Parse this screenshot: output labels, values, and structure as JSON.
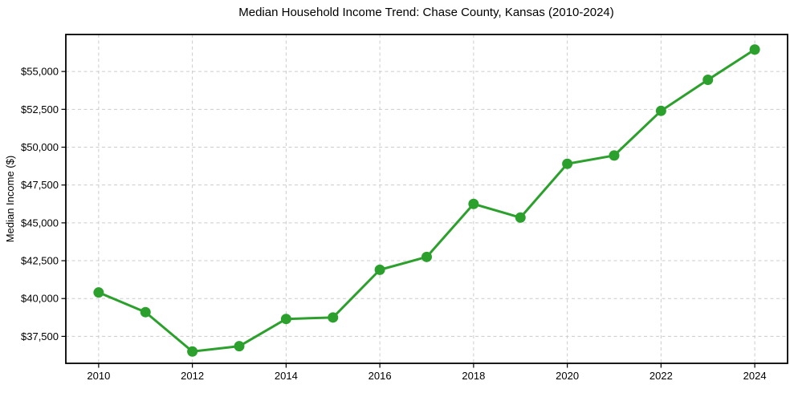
{
  "chart_data": {
    "type": "line",
    "title": "Median Household Income Trend: Chase County, Kansas (2010-2024)",
    "xlabel": "",
    "ylabel": "Median Income ($)",
    "x": [
      2010,
      2011,
      2012,
      2013,
      2014,
      2015,
      2016,
      2017,
      2018,
      2019,
      2020,
      2021,
      2022,
      2023,
      2024
    ],
    "series": [
      {
        "name": "Median Household Income",
        "values": [
          40400,
          39100,
          36500,
          36850,
          38650,
          38750,
          41900,
          42750,
          46250,
          45350,
          48900,
          49450,
          52400,
          54450,
          56450
        ]
      }
    ],
    "xlim": [
      2009.3,
      2024.7
    ],
    "ylim": [
      35720,
      57445
    ],
    "xticks": {
      "values": [
        2010,
        2012,
        2014,
        2016,
        2018,
        2020,
        2022,
        2024
      ],
      "labels": [
        "2010",
        "2012",
        "2014",
        "2016",
        "2018",
        "2020",
        "2022",
        "2024"
      ]
    },
    "yticks": {
      "values": [
        37500,
        40000,
        42500,
        45000,
        47500,
        50000,
        52500,
        55000
      ],
      "labels": [
        "$37,500",
        "$40,000",
        "$42,500",
        "$45,000",
        "$47,500",
        "$50,000",
        "$52,500",
        "$55,000"
      ]
    },
    "grid": true,
    "grid_style": "dashed",
    "legend": "none",
    "marker": "circle",
    "colors": {
      "line": "#2ca02c",
      "marker": "#2ca02c",
      "grid": "#cccccc",
      "axis": "#000000",
      "text": "#000000",
      "background": "#ffffff"
    }
  }
}
